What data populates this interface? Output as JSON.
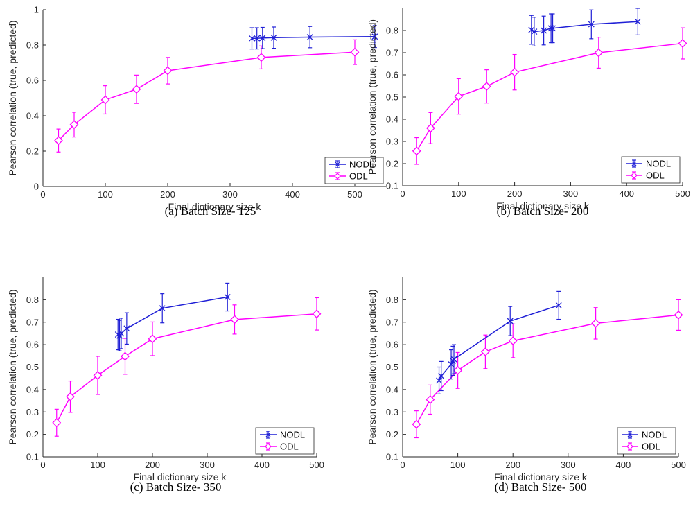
{
  "chart_data": [
    {
      "type": "line",
      "caption": "(a) Batch Size- 125",
      "xlabel": "Final dictionary size k",
      "ylabel": "Pearson correlation (true, predicted)",
      "xlim": [
        0,
        550
      ],
      "ylim": [
        0,
        1
      ],
      "xticks": [
        0,
        100,
        200,
        300,
        400,
        500
      ],
      "yticks": [
        0,
        0.2,
        0.4,
        0.6,
        0.8,
        1
      ],
      "ytick_labels": [
        "0",
        "0.2",
        "0.4",
        "0.6",
        "0.8",
        "1"
      ],
      "legend": "bottom-right",
      "series": [
        {
          "name": "NODL",
          "color": "#1f1fd6",
          "marker": "x",
          "x": [
            335,
            343,
            352,
            370,
            428,
            532
          ],
          "y": [
            0.838,
            0.838,
            0.84,
            0.842,
            0.845,
            0.848
          ],
          "err": [
            0.06,
            0.06,
            0.06,
            0.06,
            0.06,
            0.062
          ]
        },
        {
          "name": "ODL",
          "color": "#ff00ff",
          "marker": "diamond",
          "x": [
            25,
            50,
            100,
            150,
            200,
            350,
            500
          ],
          "y": [
            0.26,
            0.35,
            0.49,
            0.55,
            0.655,
            0.73,
            0.76
          ],
          "err": [
            0.065,
            0.07,
            0.08,
            0.08,
            0.075,
            0.065,
            0.07
          ]
        }
      ]
    },
    {
      "type": "line",
      "caption": "(b) Batch Size- 200",
      "xlabel": "Final dictionary size k",
      "ylabel": "Pearson correlation (true, predicted)",
      "xlim": [
        0,
        500
      ],
      "ylim": [
        0.1,
        0.9
      ],
      "xticks": [
        0,
        100,
        200,
        300,
        400,
        500
      ],
      "yticks": [
        0.1,
        0.2,
        0.3,
        0.4,
        0.5,
        0.6,
        0.7,
        0.8
      ],
      "ytick_labels": [
        "0.1",
        "0.2",
        "0.3",
        "0.4",
        "0.5",
        "0.6",
        "0.7",
        "0.8"
      ],
      "legend": "bottom-right",
      "series": [
        {
          "name": "NODL",
          "color": "#1f1fd6",
          "marker": "x",
          "x": [
            230,
            235,
            252,
            265,
            268,
            337,
            420
          ],
          "y": [
            0.803,
            0.795,
            0.8,
            0.81,
            0.81,
            0.828,
            0.84
          ],
          "err": [
            0.065,
            0.065,
            0.065,
            0.065,
            0.065,
            0.065,
            0.06
          ]
        },
        {
          "name": "ODL",
          "color": "#ff00ff",
          "marker": "diamond",
          "x": [
            25,
            50,
            100,
            150,
            200,
            350,
            500
          ],
          "y": [
            0.257,
            0.36,
            0.503,
            0.548,
            0.612,
            0.7,
            0.742
          ],
          "err": [
            0.06,
            0.07,
            0.08,
            0.075,
            0.08,
            0.07,
            0.07
          ]
        }
      ]
    },
    {
      "type": "line",
      "caption": "(c) Batch Size- 350",
      "xlabel": "Final dictionary size k",
      "ylabel": "Pearson correlation (true, predicted)",
      "xlim": [
        0,
        500
      ],
      "ylim": [
        0.1,
        0.9
      ],
      "xticks": [
        0,
        100,
        200,
        300,
        400,
        500
      ],
      "yticks": [
        0.1,
        0.2,
        0.3,
        0.4,
        0.5,
        0.6,
        0.7,
        0.8
      ],
      "ytick_labels": [
        "0.1",
        "0.2",
        "0.3",
        "0.4",
        "0.5",
        "0.6",
        "0.7",
        "0.8"
      ],
      "legend": "bottom-right",
      "series": [
        {
          "name": "NODL",
          "color": "#1f1fd6",
          "marker": "x",
          "x": [
            137,
            140,
            143,
            153,
            218,
            337
          ],
          "y": [
            0.645,
            0.64,
            0.65,
            0.672,
            0.762,
            0.812
          ],
          "err": [
            0.068,
            0.068,
            0.068,
            0.07,
            0.065,
            0.062
          ]
        },
        {
          "name": "ODL",
          "color": "#ff00ff",
          "marker": "diamond",
          "x": [
            25,
            50,
            100,
            150,
            200,
            350,
            500
          ],
          "y": [
            0.252,
            0.368,
            0.463,
            0.548,
            0.626,
            0.712,
            0.737
          ],
          "err": [
            0.06,
            0.07,
            0.085,
            0.08,
            0.075,
            0.065,
            0.072
          ]
        }
      ]
    },
    {
      "type": "line",
      "caption": "(d) Batch Size- 500",
      "xlabel": "Final dictionary size k",
      "ylabel": "Pearson correlation (true, predicted)",
      "xlim": [
        0,
        500
      ],
      "ylim": [
        0.1,
        0.9
      ],
      "xticks": [
        0,
        100,
        200,
        300,
        400,
        500
      ],
      "yticks": [
        0.1,
        0.2,
        0.3,
        0.4,
        0.5,
        0.6,
        0.7,
        0.8
      ],
      "ytick_labels": [
        "0.1",
        "0.2",
        "0.3",
        "0.4",
        "0.5",
        "0.6",
        "0.7",
        "0.8"
      ],
      "legend": "bottom-right",
      "series": [
        {
          "name": "NODL",
          "color": "#1f1fd6",
          "marker": "x",
          "x": [
            66,
            70,
            88,
            91,
            93,
            195,
            283
          ],
          "y": [
            0.44,
            0.46,
            0.512,
            0.528,
            0.535,
            0.705,
            0.775
          ],
          "err": [
            0.06,
            0.065,
            0.065,
            0.065,
            0.065,
            0.065,
            0.062
          ]
        },
        {
          "name": "ODL",
          "color": "#ff00ff",
          "marker": "diamond",
          "x": [
            25,
            50,
            100,
            150,
            200,
            350,
            500
          ],
          "y": [
            0.245,
            0.355,
            0.485,
            0.568,
            0.617,
            0.695,
            0.732
          ],
          "err": [
            0.06,
            0.065,
            0.08,
            0.075,
            0.075,
            0.07,
            0.068
          ]
        }
      ]
    }
  ]
}
